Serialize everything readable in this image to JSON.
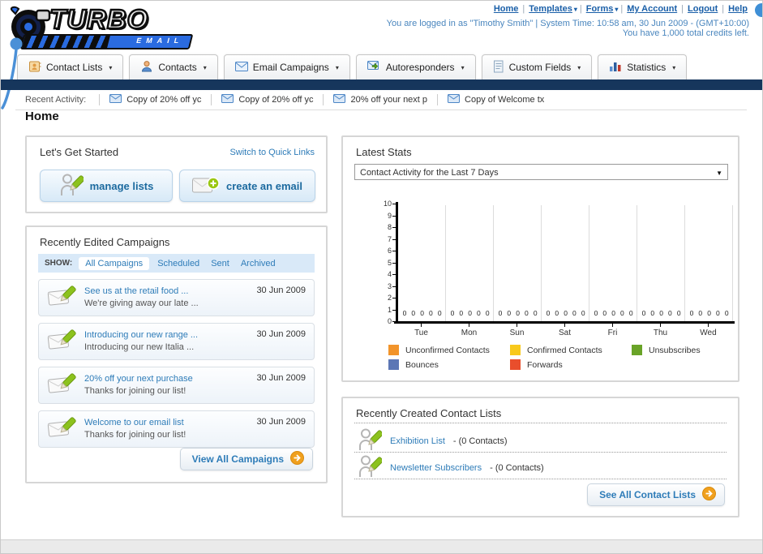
{
  "header": {
    "logo_title": "TURBO",
    "logo_subtitle": "EMAIL",
    "links": [
      {
        "label": "Home",
        "dropdown": false
      },
      {
        "label": "Templates",
        "dropdown": true
      },
      {
        "label": "Forms",
        "dropdown": true
      },
      {
        "label": "My Account",
        "dropdown": false
      },
      {
        "label": "Logout",
        "dropdown": false
      },
      {
        "label": "Help",
        "dropdown": false
      }
    ],
    "login_line": "You are logged in as \"Timothy Smith\" | System Time: 10:58 am, 30 Jun 2009 - (GMT+10:00)",
    "credits_line": "You have 1,000 total credits left."
  },
  "nav_tabs": [
    {
      "label": "Contact Lists",
      "icon": "contact-lists-icon"
    },
    {
      "label": "Contacts",
      "icon": "contacts-icon"
    },
    {
      "label": "Email Campaigns",
      "icon": "email-campaigns-icon"
    },
    {
      "label": "Autoresponders",
      "icon": "autoresponders-icon"
    },
    {
      "label": "Custom Fields",
      "icon": "custom-fields-icon"
    },
    {
      "label": "Statistics",
      "icon": "statistics-icon"
    }
  ],
  "recent_activity": {
    "label": "Recent Activity:",
    "items": [
      "Copy of 20% off yc",
      "Copy of 20% off yc",
      "20% off your next p",
      "Copy of Welcome tx"
    ]
  },
  "page_title": "Home",
  "get_started": {
    "title": "Let's Get Started",
    "switch_link": "Switch to Quick Links",
    "manage_lists_label": "manage lists",
    "create_email_label": "create an email"
  },
  "campaigns": {
    "title": "Recently Edited Campaigns",
    "show_label": "SHOW:",
    "filters": [
      "All Campaigns",
      "Scheduled",
      "Sent",
      "Archived"
    ],
    "active_filter": "All Campaigns",
    "rows": [
      {
        "title": "See us at the retail food ...",
        "subtitle": "We're giving away our late ...",
        "date": "30 Jun 2009"
      },
      {
        "title": "Introducing our new range ...",
        "subtitle": "Introducing our new Italia ...",
        "date": "30 Jun 2009"
      },
      {
        "title": "20% off your next purchase",
        "subtitle": "Thanks for joining our list!",
        "date": "30 Jun 2009"
      },
      {
        "title": "Welcome to our email list",
        "subtitle": "Thanks for joining our list!",
        "date": "30 Jun 2009"
      }
    ],
    "view_all_label": "View All Campaigns"
  },
  "latest_stats": {
    "title": "Latest Stats",
    "dropdown_value": "Contact Activity for the Last 7 Days"
  },
  "chart_data": {
    "type": "bar",
    "title": "Contact Activity for the Last 7 Days",
    "categories": [
      "Tue",
      "Mon",
      "Sun",
      "Sat",
      "Fri",
      "Thu",
      "Wed"
    ],
    "series": [
      {
        "name": "Unconfirmed Contacts",
        "color": "#F2942B",
        "values": [
          0,
          0,
          0,
          0,
          0,
          0,
          0
        ]
      },
      {
        "name": "Confirmed Contacts",
        "color": "#F8C91C",
        "values": [
          0,
          0,
          0,
          0,
          0,
          0,
          0
        ]
      },
      {
        "name": "Unsubscribes",
        "color": "#69A327",
        "values": [
          0,
          0,
          0,
          0,
          0,
          0,
          0
        ]
      },
      {
        "name": "Bounces",
        "color": "#5C77B5",
        "values": [
          0,
          0,
          0,
          0,
          0,
          0,
          0
        ]
      },
      {
        "name": "Forwards",
        "color": "#E94E2C",
        "values": [
          0,
          0,
          0,
          0,
          0,
          0,
          0
        ]
      }
    ],
    "ylim": [
      0,
      10
    ],
    "yticks": [
      0,
      1,
      2,
      3,
      4,
      5,
      6,
      7,
      8,
      9,
      10
    ],
    "grid": "vertical",
    "legend_position": "bottom",
    "value_labels_shown": true
  },
  "contact_lists": {
    "title": "Recently Created Contact Lists",
    "items": [
      {
        "name": "Exhibition List",
        "suffix": "- (0 Contacts)"
      },
      {
        "name": "Newsletter Subscribers",
        "suffix": "- (0 Contacts)"
      }
    ],
    "see_all_label": "See All Contact Lists"
  },
  "colors": {
    "navy_bar": "#16365c",
    "link_blue": "#2e7cb8",
    "header_text_blue": "#4a86be",
    "panel_border": "#d6d6d6",
    "show_bar_bg": "#d9e9f8",
    "button_text": "#1c6a9f",
    "arrow_button_orange": "#f0a01e",
    "logo_blue": "#2a6be0"
  }
}
